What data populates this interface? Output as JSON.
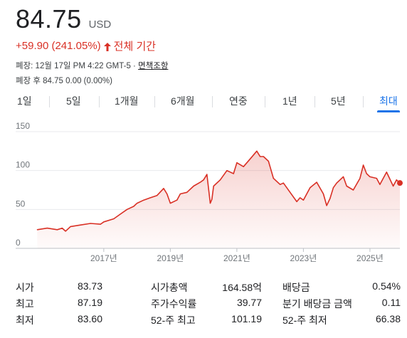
{
  "quote": {
    "price": "84.75",
    "currency": "USD",
    "change": "+59.90 (241.05%)",
    "period": "전체 기간",
    "market_close_line": "폐장: 12월 17일 PM 4:22 GMT-5 · ",
    "disclaimer_link": "면책조항",
    "after_hours": "폐장 후 84.75 0.00 (0.00%)"
  },
  "tabs": [
    {
      "label": "1일"
    },
    {
      "label": "5일"
    },
    {
      "label": "1개월"
    },
    {
      "label": "6개월"
    },
    {
      "label": "연중"
    },
    {
      "label": "1년"
    },
    {
      "label": "5년"
    },
    {
      "label": "최대"
    }
  ],
  "active_tab": "최대",
  "colors": {
    "line": "#d93025",
    "accent": "#1a73e8"
  },
  "chart_data": {
    "type": "area",
    "y_ticks": [
      "150",
      "100",
      "50",
      "0"
    ],
    "y_tick_values": [
      150,
      100,
      50,
      0
    ],
    "x_ticks": [
      "2017년",
      "2019년",
      "2021년",
      "2023년",
      "2025년"
    ],
    "x_tick_values": [
      2017,
      2019,
      2021,
      2023,
      2025
    ],
    "xlim": [
      2014.95,
      2025.9
    ],
    "ylim": [
      0,
      150
    ],
    "grid": true,
    "series": [
      {
        "x": [
          2015.0,
          2015.3,
          2015.6,
          2015.75,
          2015.85,
          2016.0,
          2016.3,
          2016.6,
          2016.9,
          2017.0,
          2017.3,
          2017.5,
          2017.7,
          2017.9,
          2018.0,
          2018.2,
          2018.4,
          2018.6,
          2018.8,
          2018.9,
          2019.0,
          2019.2,
          2019.3,
          2019.5,
          2019.7,
          2019.9,
          2020.0,
          2020.1,
          2020.2,
          2020.25,
          2020.3,
          2020.5,
          2020.7,
          2020.9,
          2021.0,
          2021.2,
          2021.4,
          2021.6,
          2021.7,
          2021.8,
          2021.95,
          2022.1,
          2022.3,
          2022.4,
          2022.6,
          2022.8,
          2022.9,
          2023.0,
          2023.2,
          2023.4,
          2023.6,
          2023.7,
          2023.8,
          2023.9,
          2024.0,
          2024.2,
          2024.3,
          2024.5,
          2024.7,
          2024.8,
          2024.9,
          2025.0,
          2025.2,
          2025.3,
          2025.5,
          2025.7,
          2025.8,
          2025.9
        ],
        "y": [
          24,
          26,
          24,
          26,
          22,
          28,
          30,
          32,
          31,
          34,
          38,
          44,
          50,
          54,
          58,
          62,
          65,
          68,
          77,
          70,
          58,
          62,
          70,
          72,
          80,
          85,
          88,
          95,
          58,
          63,
          80,
          88,
          100,
          96,
          110,
          105,
          115,
          125,
          118,
          118,
          112,
          90,
          82,
          84,
          72,
          60,
          65,
          62,
          78,
          85,
          70,
          55,
          64,
          78,
          84,
          92,
          80,
          75,
          90,
          107,
          96,
          92,
          90,
          82,
          98,
          80,
          88,
          84
        ]
      }
    ]
  },
  "stats": {
    "col1": [
      {
        "label": "시가",
        "value": "83.73"
      },
      {
        "label": "최고",
        "value": "87.19"
      },
      {
        "label": "최저",
        "value": "83.60"
      }
    ],
    "col2": [
      {
        "label": "시가총액",
        "value": "164.58억"
      },
      {
        "label": "주가수익률",
        "value": "39.77"
      },
      {
        "label": "52-주 최고",
        "value": "101.19"
      }
    ],
    "col3": [
      {
        "label": "배당금",
        "value": "0.54%"
      },
      {
        "label": "분기 배당금 금액",
        "value": "0.11"
      },
      {
        "label": "52-주 최저",
        "value": "66.38"
      }
    ]
  }
}
